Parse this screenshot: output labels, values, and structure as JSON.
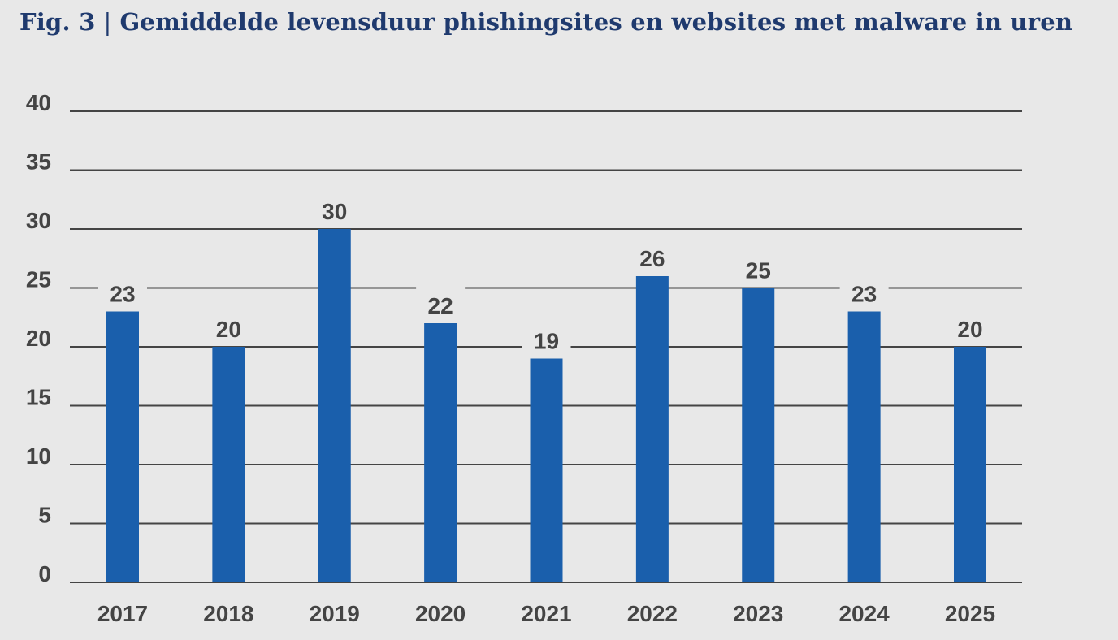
{
  "figure": {
    "number": "Fig. 3",
    "separator": "|",
    "title": "Gemiddelde levensduur phishingsites en websites met malware in uren"
  },
  "chart_data": {
    "type": "bar",
    "title": "Gemiddelde levensduur phishingsites en websites met malware in uren",
    "xlabel": "",
    "ylabel": "",
    "categories": [
      "2017",
      "2018",
      "2019",
      "2020",
      "2021",
      "2022",
      "2023",
      "2024",
      "2025"
    ],
    "values": [
      23,
      20,
      30,
      22,
      19,
      26,
      25,
      23,
      20
    ],
    "ylim": [
      0,
      40
    ],
    "yticks": [
      0,
      5,
      10,
      15,
      20,
      25,
      30,
      35,
      40
    ],
    "grid": true,
    "legend": "none",
    "colors": {
      "bar": "#1a5fac",
      "grid": "#444444",
      "text": "#444444",
      "title": "#1f3a6e",
      "background": "#e8e8e8"
    }
  }
}
